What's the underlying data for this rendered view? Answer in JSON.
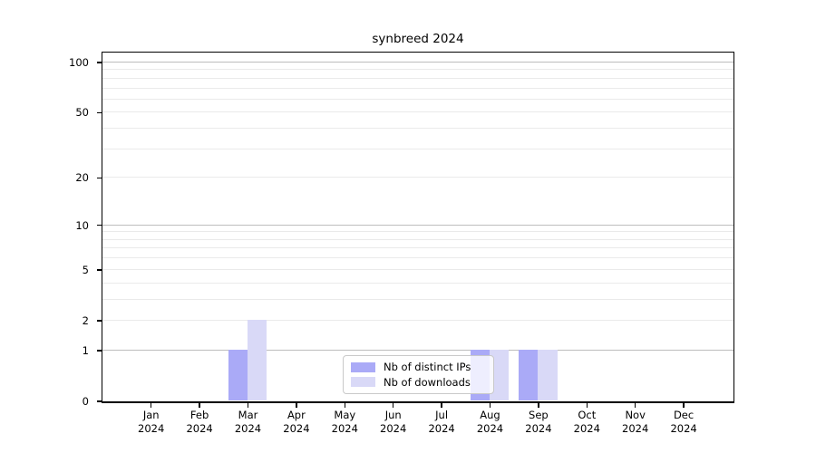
{
  "title": "synbreed 2024",
  "chart_data": {
    "type": "bar",
    "title": "synbreed 2024",
    "year_label": "2024",
    "categories": [
      "Jan",
      "Feb",
      "Mar",
      "Apr",
      "May",
      "Jun",
      "Jul",
      "Aug",
      "Sep",
      "Oct",
      "Nov",
      "Dec"
    ],
    "series": [
      {
        "name": "Nb of distinct IPs",
        "color": "#aaaaf7",
        "values": [
          0,
          0,
          1,
          0,
          0,
          0,
          0,
          1,
          1,
          0,
          0,
          0
        ]
      },
      {
        "name": "Nb of downloads",
        "color": "#d9d9f7",
        "values": [
          0,
          0,
          2,
          0,
          0,
          0,
          0,
          1,
          1,
          0,
          0,
          0
        ]
      }
    ],
    "yscale": "log1p",
    "ylim": [
      0,
      114
    ],
    "yticks": [
      0,
      1,
      2,
      5,
      10,
      20,
      50,
      100
    ],
    "grid_major": [
      1,
      10,
      100
    ],
    "grid_minor": [
      2,
      3,
      4,
      5,
      6,
      7,
      8,
      9,
      20,
      30,
      40,
      50,
      60,
      70,
      80,
      90
    ],
    "grid_on": true,
    "legend_position": "lower center",
    "colors": {
      "grid_major": "#bdbdbd",
      "grid_minor": "#eaeaea",
      "axis": "#000000",
      "background": "#ffffff"
    }
  }
}
